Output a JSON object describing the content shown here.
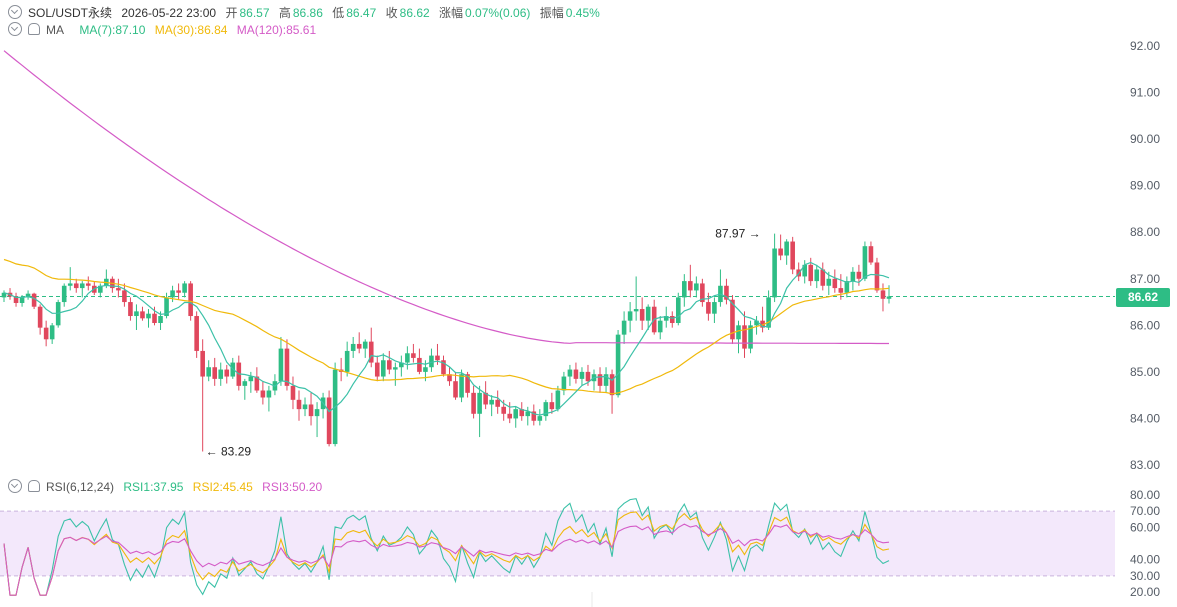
{
  "header": {
    "symbol": "SOL/USDT永续",
    "datetime": "2026-05-22 23:00",
    "open_label": "开",
    "open": "86.57",
    "high_label": "高",
    "high": "86.86",
    "low_label": "低",
    "low": "86.47",
    "close_label": "收",
    "close": "86.62",
    "change_label": "涨幅",
    "change": "0.07%(0.06)",
    "amplitude_label": "振幅",
    "amplitude": "0.45%"
  },
  "ma_legend": {
    "title": "MA",
    "ma7": "MA(7):87.10",
    "ma30": "MA(30):86.84",
    "ma120": "MA(120):85.61"
  },
  "rsi_legend": {
    "title": "RSI(6,12,24)",
    "rsi1": "RSI1:37.95",
    "rsi2": "RSI2:45.45",
    "rsi3": "RSI3:50.20"
  },
  "current_price": "86.62",
  "annotations": {
    "high_mark": "87.97",
    "low_mark": "83.29"
  },
  "colors": {
    "up": "#2ebd85",
    "down": "#e0475d",
    "ma7": "#3cc1a8",
    "ma30": "#f0b90b",
    "ma120": "#d45bc7",
    "rsi_band": "#f3e8fb"
  },
  "chart_data": [
    {
      "type": "candlestick",
      "title": "SOL/USDT永续",
      "price_ticks": [
        "92.00",
        "91.00",
        "90.00",
        "89.00",
        "88.00",
        "87.00",
        "86.00",
        "85.00",
        "84.00",
        "83.00"
      ],
      "ylim": [
        83.0,
        92.0
      ],
      "ohlc": [
        [
          86.6,
          86.75,
          86.5,
          86.7
        ],
        [
          86.7,
          86.8,
          86.55,
          86.62
        ],
        [
          86.62,
          86.7,
          86.4,
          86.48
        ],
        [
          86.48,
          86.65,
          86.4,
          86.6
        ],
        [
          86.6,
          86.75,
          86.55,
          86.68
        ],
        [
          86.68,
          86.7,
          86.35,
          86.4
        ],
        [
          86.4,
          86.45,
          85.8,
          85.95
        ],
        [
          85.95,
          86.1,
          85.55,
          85.7
        ],
        [
          85.7,
          86.05,
          85.6,
          86.0
        ],
        [
          86.0,
          86.55,
          85.95,
          86.5
        ],
        [
          86.5,
          86.9,
          86.4,
          86.85
        ],
        [
          86.85,
          87.25,
          86.75,
          86.9
        ],
        [
          86.9,
          87.0,
          86.7,
          86.8
        ],
        [
          86.8,
          86.95,
          86.6,
          86.9
        ],
        [
          86.9,
          87.05,
          86.75,
          86.85
        ],
        [
          86.85,
          86.95,
          86.65,
          86.7
        ],
        [
          86.7,
          86.9,
          86.6,
          86.85
        ],
        [
          86.85,
          87.2,
          86.8,
          87.0
        ],
        [
          87.0,
          87.05,
          86.7,
          86.8
        ],
        [
          86.8,
          87.0,
          86.6,
          86.75
        ],
        [
          86.75,
          86.9,
          86.4,
          86.5
        ],
        [
          86.5,
          86.6,
          86.1,
          86.2
        ],
        [
          86.2,
          86.45,
          85.9,
          86.3
        ],
        [
          86.3,
          86.4,
          86.1,
          86.15
        ],
        [
          86.15,
          86.35,
          85.95,
          86.25
        ],
        [
          86.25,
          86.4,
          86.0,
          86.05
        ],
        [
          86.05,
          86.3,
          85.9,
          86.2
        ],
        [
          86.2,
          86.7,
          86.15,
          86.6
        ],
        [
          86.6,
          86.85,
          86.5,
          86.75
        ],
        [
          86.75,
          86.9,
          86.55,
          86.7
        ],
        [
          86.7,
          86.95,
          86.6,
          86.9
        ],
        [
          86.9,
          86.95,
          86.1,
          86.2
        ],
        [
          86.2,
          86.3,
          85.3,
          85.45
        ],
        [
          85.45,
          85.7,
          83.29,
          84.9
        ],
        [
          84.9,
          85.25,
          84.8,
          85.1
        ],
        [
          85.1,
          85.3,
          84.7,
          84.85
        ],
        [
          84.85,
          85.2,
          84.7,
          85.05
        ],
        [
          85.05,
          85.15,
          84.75,
          84.9
        ],
        [
          84.9,
          85.3,
          84.85,
          85.2
        ],
        [
          85.2,
          85.35,
          84.6,
          84.7
        ],
        [
          84.7,
          84.85,
          84.4,
          84.8
        ],
        [
          84.8,
          85.0,
          84.55,
          84.9
        ],
        [
          84.9,
          85.1,
          84.55,
          84.6
        ],
        [
          84.6,
          84.8,
          84.3,
          84.45
        ],
        [
          84.45,
          84.7,
          84.15,
          84.6
        ],
        [
          84.6,
          84.95,
          84.5,
          84.8
        ],
        [
          84.8,
          85.75,
          84.7,
          85.5
        ],
        [
          85.5,
          85.7,
          84.6,
          84.7
        ],
        [
          84.7,
          84.9,
          84.2,
          84.4
        ],
        [
          84.4,
          84.6,
          83.95,
          84.2
        ],
        [
          84.2,
          84.45,
          84.05,
          84.3
        ],
        [
          84.3,
          84.55,
          83.85,
          84.05
        ],
        [
          84.05,
          84.35,
          83.6,
          84.2
        ],
        [
          84.2,
          84.55,
          84.0,
          84.45
        ],
        [
          84.45,
          84.6,
          83.4,
          83.45
        ],
        [
          83.45,
          85.2,
          83.4,
          85.05
        ],
        [
          85.05,
          85.3,
          84.8,
          85.0
        ],
        [
          85.0,
          85.65,
          84.9,
          85.45
        ],
        [
          85.45,
          85.75,
          85.3,
          85.6
        ],
        [
          85.6,
          85.85,
          85.4,
          85.5
        ],
        [
          85.5,
          85.7,
          85.3,
          85.65
        ],
        [
          85.65,
          85.95,
          85.1,
          85.2
        ],
        [
          85.2,
          85.35,
          84.8,
          84.9
        ],
        [
          84.9,
          85.4,
          84.8,
          85.25
        ],
        [
          85.25,
          85.45,
          84.95,
          85.05
        ],
        [
          85.05,
          85.2,
          84.7,
          85.1
        ],
        [
          85.1,
          85.35,
          84.9,
          85.2
        ],
        [
          85.2,
          85.55,
          85.05,
          85.4
        ],
        [
          85.4,
          85.6,
          85.2,
          85.3
        ],
        [
          85.3,
          85.5,
          84.95,
          85.0
        ],
        [
          85.0,
          85.25,
          84.8,
          85.1
        ],
        [
          85.1,
          85.5,
          85.0,
          85.35
        ],
        [
          85.35,
          85.6,
          85.15,
          85.25
        ],
        [
          85.25,
          85.35,
          84.9,
          84.95
        ],
        [
          84.95,
          85.1,
          84.7,
          84.8
        ],
        [
          84.8,
          85.0,
          84.4,
          84.45
        ],
        [
          84.45,
          85.05,
          84.35,
          84.95
        ],
        [
          84.95,
          85.0,
          84.45,
          84.55
        ],
        [
          84.55,
          84.7,
          84.0,
          84.1
        ],
        [
          84.1,
          84.7,
          83.6,
          84.55
        ],
        [
          84.55,
          84.8,
          84.2,
          84.3
        ],
        [
          84.3,
          84.5,
          84.05,
          84.4
        ],
        [
          84.4,
          84.6,
          84.1,
          84.25
        ],
        [
          84.25,
          84.4,
          83.95,
          84.1
        ],
        [
          84.1,
          84.35,
          83.9,
          84.0
        ],
        [
          84.0,
          84.25,
          83.8,
          84.2
        ],
        [
          84.2,
          84.35,
          83.95,
          84.05
        ],
        [
          84.05,
          84.25,
          83.85,
          84.15
        ],
        [
          84.15,
          84.3,
          83.85,
          83.95
        ],
        [
          83.95,
          84.2,
          83.85,
          84.05
        ],
        [
          84.05,
          84.4,
          83.95,
          84.35
        ],
        [
          84.35,
          84.55,
          84.1,
          84.2
        ],
        [
          84.2,
          84.7,
          84.15,
          84.6
        ],
        [
          84.6,
          85.0,
          84.5,
          84.9
        ],
        [
          84.9,
          85.15,
          84.7,
          85.05
        ],
        [
          85.05,
          85.2,
          84.75,
          84.85
        ],
        [
          84.85,
          85.1,
          84.7,
          85.0
        ],
        [
          85.0,
          85.15,
          84.7,
          84.8
        ],
        [
          84.8,
          85.05,
          84.6,
          84.95
        ],
        [
          84.95,
          85.1,
          84.55,
          84.7
        ],
        [
          84.7,
          85.1,
          84.55,
          84.95
        ],
        [
          84.95,
          85.05,
          84.1,
          84.5
        ],
        [
          84.5,
          85.9,
          84.45,
          85.8
        ],
        [
          85.8,
          86.3,
          85.6,
          86.1
        ],
        [
          86.1,
          86.5,
          85.85,
          86.3
        ],
        [
          86.3,
          87.05,
          86.1,
          86.35
        ],
        [
          86.35,
          86.6,
          85.9,
          86.1
        ],
        [
          86.1,
          86.45,
          85.9,
          86.4
        ],
        [
          86.4,
          86.55,
          85.8,
          85.85
        ],
        [
          85.85,
          86.2,
          85.7,
          86.1
        ],
        [
          86.1,
          86.4,
          85.95,
          86.2
        ],
        [
          86.2,
          86.3,
          85.95,
          86.05
        ],
        [
          86.05,
          86.7,
          86.0,
          86.6
        ],
        [
          86.6,
          87.1,
          86.4,
          86.95
        ],
        [
          86.95,
          87.3,
          86.6,
          86.75
        ],
        [
          86.75,
          87.05,
          86.6,
          86.9
        ],
        [
          86.9,
          87.0,
          86.4,
          86.5
        ],
        [
          86.5,
          86.7,
          86.1,
          86.25
        ],
        [
          86.25,
          86.6,
          86.05,
          86.5
        ],
        [
          86.5,
          87.2,
          86.4,
          86.85
        ],
        [
          86.85,
          87.0,
          86.45,
          86.55
        ],
        [
          86.55,
          86.65,
          85.6,
          85.7
        ],
        [
          85.7,
          86.1,
          85.4,
          86.0
        ],
        [
          86.0,
          86.3,
          85.3,
          85.5
        ],
        [
          85.5,
          86.1,
          85.4,
          86.0
        ],
        [
          86.0,
          86.2,
          85.8,
          86.1
        ],
        [
          86.1,
          86.4,
          85.85,
          85.95
        ],
        [
          85.95,
          86.75,
          85.9,
          86.6
        ],
        [
          86.6,
          87.97,
          86.5,
          87.65
        ],
        [
          87.65,
          87.95,
          87.4,
          87.5
        ],
        [
          87.5,
          87.85,
          87.3,
          87.8
        ],
        [
          87.8,
          87.9,
          87.1,
          87.2
        ],
        [
          87.2,
          87.35,
          86.95,
          87.05
        ],
        [
          87.05,
          87.4,
          86.9,
          87.3
        ],
        [
          87.3,
          87.45,
          86.85,
          86.95
        ],
        [
          86.95,
          87.3,
          86.8,
          87.2
        ],
        [
          87.2,
          87.35,
          86.75,
          86.85
        ],
        [
          86.85,
          87.15,
          86.65,
          87.0
        ],
        [
          87.0,
          87.2,
          86.7,
          86.8
        ],
        [
          86.8,
          87.1,
          86.55,
          86.7
        ],
        [
          86.7,
          87.05,
          86.6,
          86.95
        ],
        [
          86.95,
          87.25,
          86.75,
          87.15
        ],
        [
          87.15,
          87.3,
          86.85,
          87.0
        ],
        [
          87.0,
          87.8,
          86.95,
          87.7
        ],
        [
          87.7,
          87.8,
          87.3,
          87.35
        ],
        [
          87.35,
          87.45,
          86.7,
          86.75
        ],
        [
          86.75,
          86.9,
          86.3,
          86.57
        ],
        [
          86.57,
          86.86,
          86.47,
          86.62
        ]
      ],
      "ma7_end": 87.1,
      "ma30_end": 86.84,
      "ma120_end": 85.61
    },
    {
      "type": "line",
      "title": "RSI(6,12,24)",
      "rsi_ticks": [
        "80.00",
        "70.00",
        "60.00",
        "40.00",
        "30.00",
        "20.00"
      ],
      "ylim": [
        18,
        82
      ],
      "band": [
        30,
        70
      ],
      "series": [
        {
          "name": "RSI1",
          "end": 37.95
        },
        {
          "name": "RSI2",
          "end": 45.45
        },
        {
          "name": "RSI3",
          "end": 50.2
        }
      ]
    }
  ]
}
